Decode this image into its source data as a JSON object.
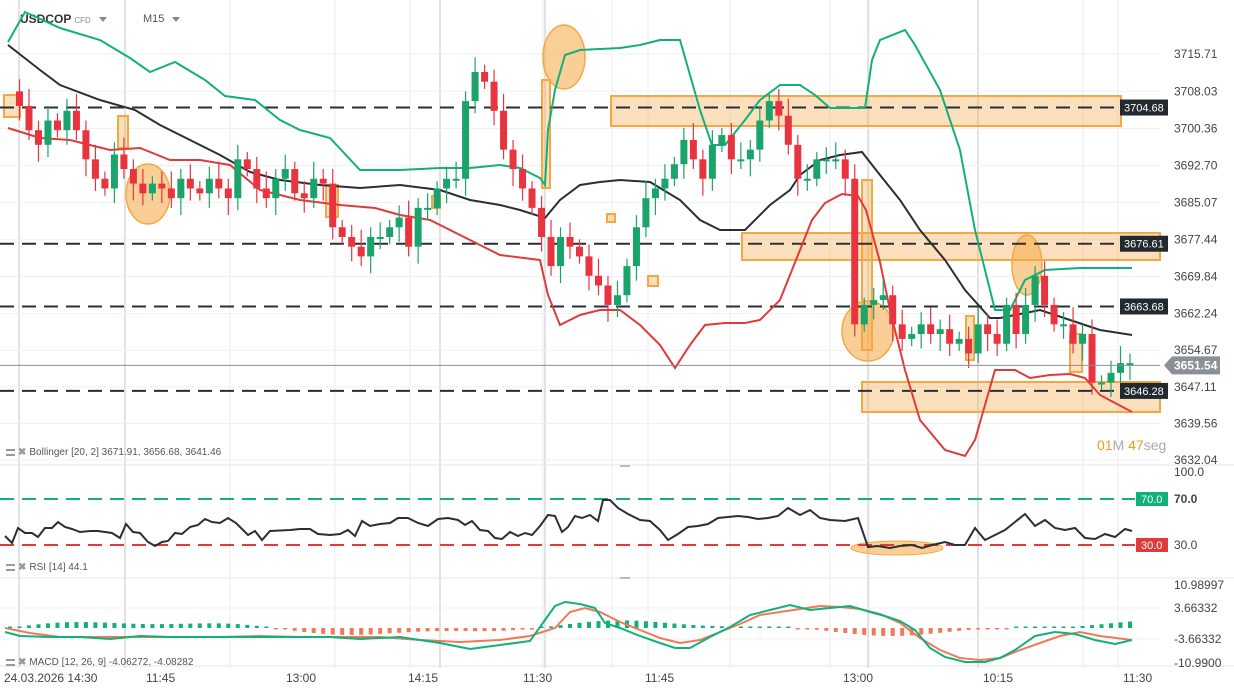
{
  "header": {
    "symbol": "USDCOP",
    "symbol_tag": "CFD",
    "timeframe": "M15"
  },
  "timer": {
    "min_val": "01",
    "min_unit": "M",
    "sec_val": "47",
    "sec_unit": "seg"
  },
  "indicators": {
    "bollinger": "Bollinger [20, 2] 3671.91, 3656.68, 3641.46",
    "rsi": "RSI [14] 44.1",
    "macd": "MACD [12, 26, 9] -4.06272, -4.08282"
  },
  "colors": {
    "up": "#1aa36b",
    "down": "#e8343f",
    "bb_upper": "#12b07a",
    "bb_mid": "#2a2f36",
    "bb_lower": "#e03a3a",
    "highlight": "#f5a742",
    "rsi_over": "#12b07a",
    "rsi_under": "#e03a3a",
    "macd_line": "#12b07a",
    "signal_line": "#ef7a5a",
    "price_tag": "#8a9096",
    "level_tag": "#222a30"
  },
  "chart_data": [
    {
      "type": "candlestick",
      "title": "USDCOP CFD M15",
      "y_ticks": [
        "3715.71",
        "3708.03",
        "3700.36",
        "3692.70",
        "3685.07",
        "3677.44",
        "3669.84",
        "3662.24",
        "3654.67",
        "3647.11",
        "3639.56",
        "3632.04"
      ],
      "ylim": [
        3632.04,
        3721.0
      ],
      "current_price": "3651.54",
      "levels": [
        "3704.68",
        "3676.61",
        "3663.68",
        "3646.28"
      ],
      "x_labels": [
        "24.03.2026 14:30",
        "11:45",
        "13:00",
        "14:15",
        "11:30",
        "11:45",
        "13:00",
        "10:15",
        "11:30"
      ],
      "legend": "Bollinger [20, 2] 3671.91, 3656.68, 3641.46",
      "bollinger": {
        "upper": 3671.91,
        "middle": 3656.68,
        "lower": 3641.46
      }
    },
    {
      "type": "line",
      "title": "RSI [14] 44.1",
      "y_ticks": [
        "100.0",
        "70.0",
        "30.0"
      ],
      "levels": [
        "70.0",
        "30.0"
      ],
      "last_value": 44.1
    },
    {
      "type": "bar+line",
      "title": "MACD [12, 26, 9] -4.06272, -4.08282",
      "y_ticks": [
        "10.98997",
        "3.66332",
        "-3.66332",
        "-10.9900"
      ],
      "macd": -4.06272,
      "signal": -4.08282
    }
  ]
}
